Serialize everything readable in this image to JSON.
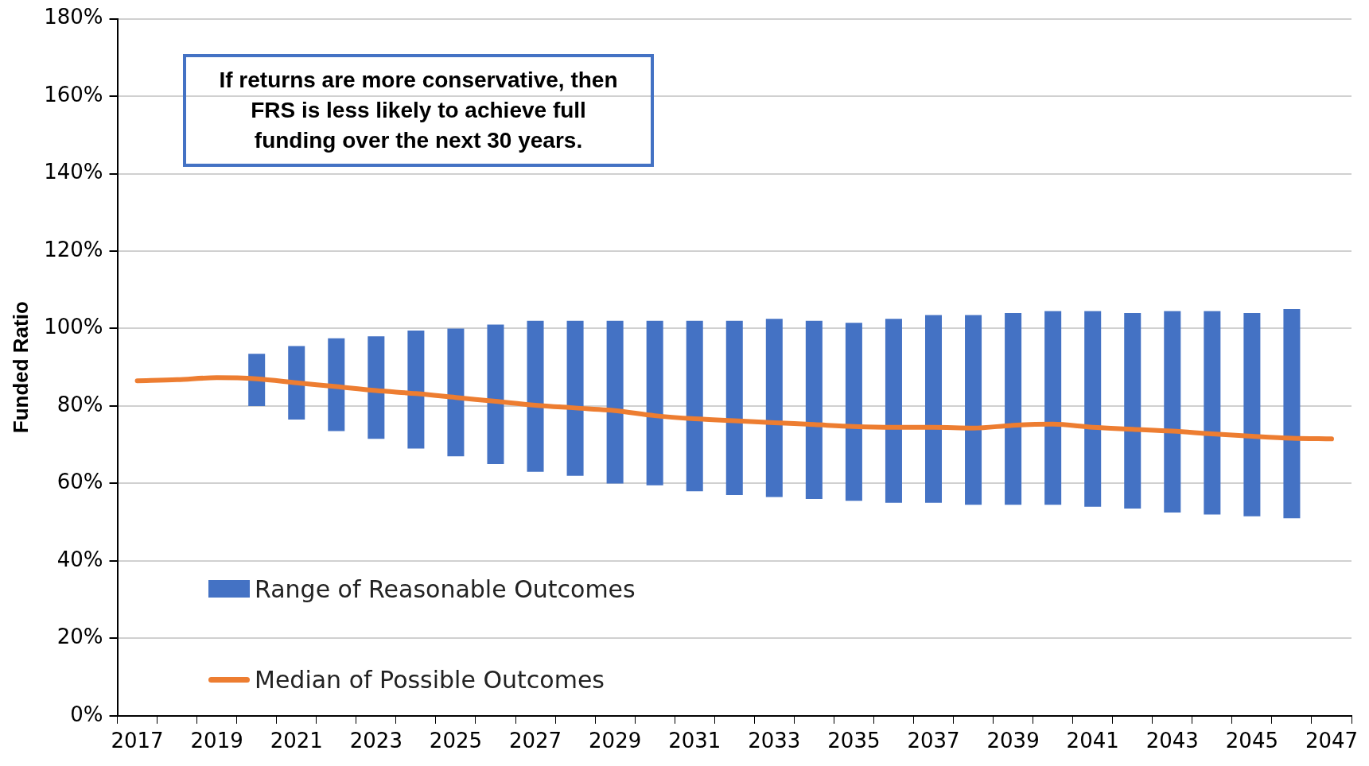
{
  "chart_data": {
    "type": "bar",
    "categories": [
      "2017",
      null,
      "2019",
      null,
      "2021",
      null,
      "2023",
      null,
      "2025",
      null,
      "2027",
      null,
      "2029",
      null,
      "2031",
      null,
      "2033",
      null,
      "2035",
      null,
      "2037",
      null,
      "2039",
      null,
      "2041",
      null,
      "2043",
      null,
      "2045",
      null,
      "2047"
    ],
    "ylabel": "Funded Ratio",
    "annotations": [
      "If returns are more conservative, then FRS is less likely to achieve full funding over the next 30 years."
    ],
    "series": [
      {
        "name": "Range of Reasonable Outcomes",
        "color": "#4472c4",
        "base": [
          null,
          null,
          null,
          80,
          76.5,
          73.5,
          71.5,
          69,
          67,
          65,
          63,
          62,
          60,
          59.5,
          58,
          57,
          56.5,
          56,
          55.5,
          55,
          55,
          54.5,
          54.5,
          54.5,
          54,
          53.5,
          52.5,
          52,
          51.5,
          51,
          null
        ],
        "values": [
          null,
          null,
          null,
          13.5,
          19,
          24,
          26.5,
          30.5,
          33,
          36,
          39,
          40,
          42,
          42.5,
          44,
          45,
          46,
          46,
          46,
          47.5,
          48.5,
          49,
          49.5,
          50,
          50.5,
          50.5,
          52,
          52.5,
          52.5,
          54,
          null
        ]
      },
      {
        "name": "Median of Possible Outcomes",
        "type": "line",
        "color": "#ed7d31",
        "values": [
          86.5,
          86.8,
          87.3,
          87,
          86,
          85,
          84,
          83.2,
          82.2,
          81.2,
          80.2,
          79.5,
          78.8,
          77.5,
          76.7,
          76.2,
          75.7,
          75.2,
          74.7,
          74.5,
          74.5,
          74.3,
          75,
          75.3,
          74.5,
          74,
          73.5,
          72.8,
          72.2,
          71.7,
          71.5
        ]
      }
    ],
    "ylim": [
      0,
      180
    ],
    "yticks": [
      {
        "value": 0,
        "label": "0%"
      },
      {
        "value": 20,
        "label": "20%"
      },
      {
        "value": 40,
        "label": "40%"
      },
      {
        "value": 60,
        "label": "60%"
      },
      {
        "value": 80,
        "label": "80%"
      },
      {
        "value": 100,
        "label": "100%"
      },
      {
        "value": 120,
        "label": "120%"
      },
      {
        "value": 140,
        "label": "140%"
      },
      {
        "value": 160,
        "label": "160%"
      },
      {
        "value": 180,
        "label": "180%"
      }
    ],
    "grid": "y",
    "legend": "bottom left",
    "marker": "none",
    "line_style": "solid"
  }
}
